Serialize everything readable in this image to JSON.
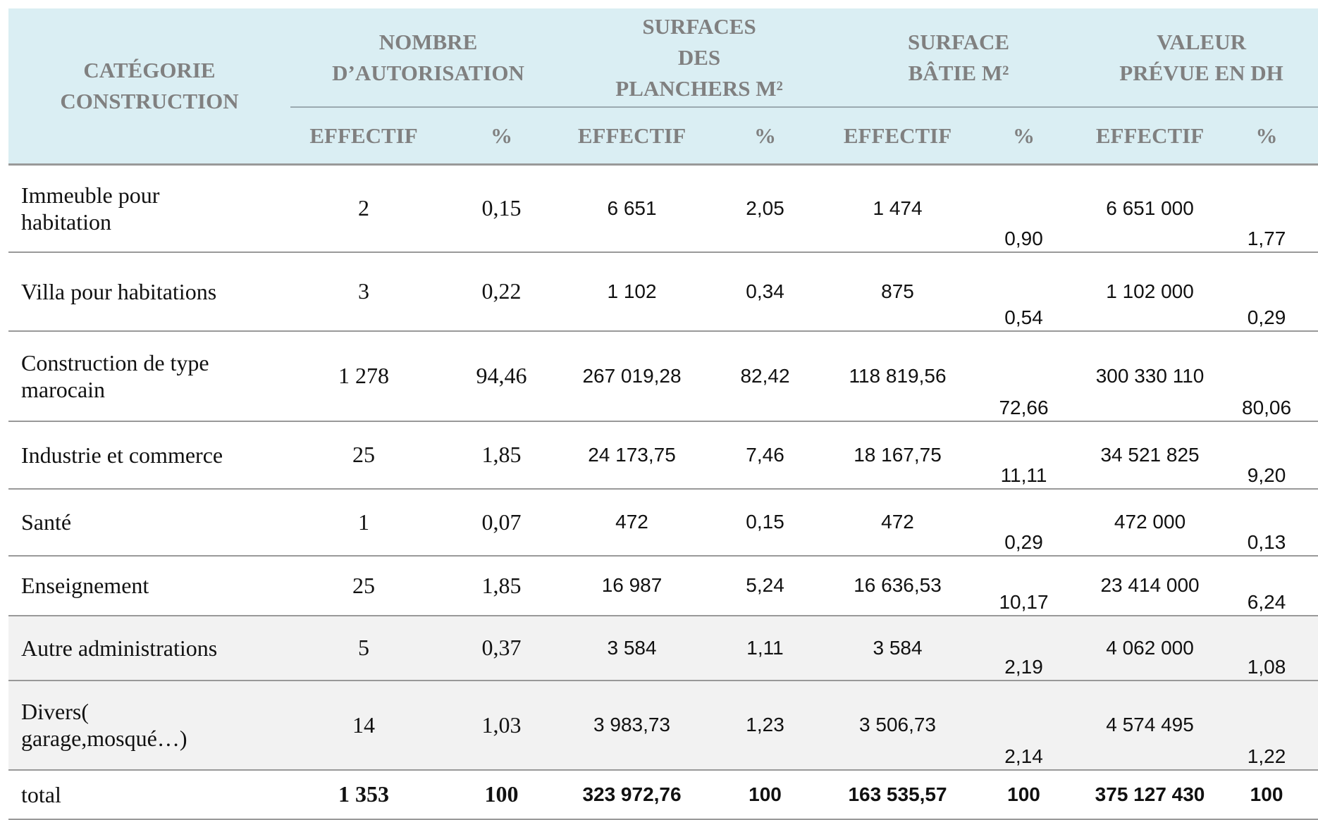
{
  "header": {
    "category": "CATÉGORIE\nCONSTRUCTION",
    "groups": [
      "NOMBRE\nD’AUTORISATION",
      "SURFACES\nDES\nPLANCHERS M²",
      "SURFACE\nBÂTIE M²",
      "VALEUR\nPRÉVUE EN DH"
    ],
    "subheaders": [
      "EFFECTIF",
      "%",
      "EFFECTIF",
      "%",
      "EFFECTIF",
      "%",
      "EFFECTIF",
      "%"
    ]
  },
  "rows": [
    [
      "Immeuble pour\nhabitation",
      "2",
      "0,15",
      "6 651",
      "2,05",
      "1 474",
      "0,90",
      "6 651 000",
      "1,77"
    ],
    [
      "Villa pour habitations",
      "3",
      "0,22",
      "1 102",
      "0,34",
      "875",
      "0,54",
      "1 102 000",
      "0,29"
    ],
    [
      "Construction de type\nmarocain",
      "1 278",
      "94,46",
      "267 019,28",
      "82,42",
      "118 819,56",
      "72,66",
      "300 330 110",
      "80,06"
    ],
    [
      "Industrie et commerce",
      "25",
      "1,85",
      "24 173,75",
      "7,46",
      "18 167,75",
      "11,11",
      "34 521 825",
      "9,20"
    ],
    [
      "Santé",
      "1",
      "0,07",
      "472",
      "0,15",
      "472",
      "0,29",
      "472 000",
      "0,13"
    ],
    [
      "Enseignement",
      "25",
      "1,85",
      "16 987",
      "5,24",
      "16 636,53",
      "10,17",
      "23 414 000",
      "6,24"
    ],
    [
      "Autre administrations",
      "5",
      "0,37",
      "3 584",
      "1,11",
      "3 584",
      "2,19",
      "4 062 000",
      "1,08"
    ],
    [
      "Divers(\ngarage,mosqué…)",
      "14",
      "1,03",
      "3 983,73",
      "1,23",
      "3 506,73",
      "2,14",
      "4 574 495",
      "1,22"
    ]
  ],
  "total": [
    "total",
    "1 353",
    "100",
    "323 972,76",
    "100",
    "163 535,57",
    "100",
    "375 127 430",
    "100"
  ]
}
